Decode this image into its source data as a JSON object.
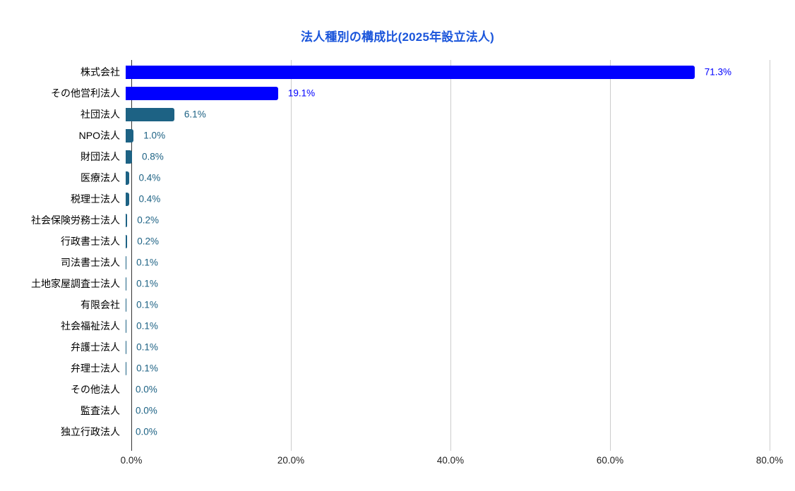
{
  "title": "法人種別の構成比(2025年設立法人)",
  "colors": {
    "background": "#ffffff",
    "title": "#1a55db",
    "bar_blue": "#0000ff",
    "bar_teal": "#1d6284",
    "gridline": "#cccccc",
    "axis_line": "#333333",
    "tick_label": "#222222",
    "category_label": "#000000"
  },
  "chart_data": {
    "type": "bar",
    "orientation": "horizontal",
    "title": "法人種別の構成比(2025年設立法人)",
    "categories": [
      "株式会社",
      "その他営利法人",
      "社団法人",
      "NPO法人",
      "財団法人",
      "医療法人",
      "税理士法人",
      "社会保険労務士法人",
      "行政書士法人",
      "司法書士法人",
      "土地家屋調査士法人",
      "有限会社",
      "社会福祉法人",
      "弁護士法人",
      "弁理士法人",
      "その他法人",
      "監査法人",
      "独立行政法人"
    ],
    "values": [
      71.3,
      19.1,
      6.1,
      1.0,
      0.8,
      0.4,
      0.4,
      0.2,
      0.2,
      0.1,
      0.1,
      0.1,
      0.1,
      0.1,
      0.1,
      0.0,
      0.0,
      0.0
    ],
    "value_labels": [
      "71.3%",
      "19.1%",
      "6.1%",
      "1.0%",
      "0.8%",
      "0.4%",
      "0.4%",
      "0.2%",
      "0.2%",
      "0.1%",
      "0.1%",
      "0.1%",
      "0.1%",
      "0.1%",
      "0.1%",
      "0.0%",
      "0.0%",
      "0.0%"
    ],
    "bar_colors": [
      "#0000ff",
      "#0000ff",
      "#1d6284",
      "#1d6284",
      "#1d6284",
      "#1d6284",
      "#1d6284",
      "#1d6284",
      "#1d6284",
      "#1d6284",
      "#1d6284",
      "#1d6284",
      "#1d6284",
      "#1d6284",
      "#1d6284",
      "#1d6284",
      "#1d6284",
      "#1d6284"
    ],
    "x_ticks": [
      "0.0%",
      "20.0%",
      "40.0%",
      "60.0%",
      "80.0%"
    ],
    "xlim": [
      0,
      80
    ],
    "xlabel": "",
    "ylabel": "",
    "grid": "vertical",
    "legend": "none"
  }
}
